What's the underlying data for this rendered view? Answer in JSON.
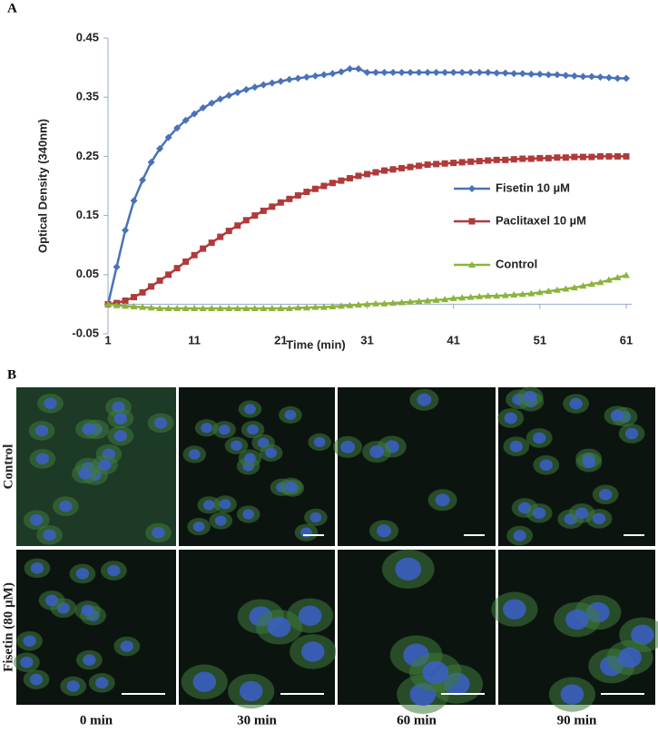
{
  "chart_data": {
    "type": "line",
    "panel_label": "A",
    "xlabel": "Time (min)",
    "ylabel": "Optical Density (340nm)",
    "x": [
      1,
      2,
      3,
      4,
      5,
      6,
      7,
      8,
      9,
      10,
      11,
      12,
      13,
      14,
      15,
      16,
      17,
      18,
      19,
      20,
      21,
      22,
      23,
      24,
      25,
      26,
      27,
      28,
      29,
      30,
      31,
      32,
      33,
      34,
      35,
      36,
      37,
      38,
      39,
      40,
      41,
      42,
      43,
      44,
      45,
      46,
      47,
      48,
      49,
      50,
      51,
      52,
      53,
      54,
      55,
      56,
      57,
      58,
      59,
      60,
      61
    ],
    "xlim": [
      1,
      61
    ],
    "xticks": [
      1,
      11,
      21,
      31,
      41,
      51,
      61
    ],
    "ylim": [
      -0.05,
      0.45
    ],
    "yticks": [
      -0.05,
      0.05,
      0.15,
      0.25,
      0.35,
      0.45
    ],
    "legend_position": "right",
    "series": [
      {
        "name": "Fisetin  10 µM",
        "color": "#4a72b8",
        "marker": "diamond",
        "values": [
          0,
          0.063,
          0.125,
          0.175,
          0.21,
          0.24,
          0.263,
          0.282,
          0.298,
          0.311,
          0.322,
          0.332,
          0.34,
          0.347,
          0.353,
          0.358,
          0.363,
          0.367,
          0.371,
          0.374,
          0.377,
          0.38,
          0.382,
          0.384,
          0.386,
          0.388,
          0.39,
          0.393,
          0.398,
          0.398,
          0.392,
          0.392,
          0.392,
          0.392,
          0.392,
          0.392,
          0.392,
          0.392,
          0.392,
          0.392,
          0.392,
          0.392,
          0.392,
          0.392,
          0.392,
          0.391,
          0.391,
          0.39,
          0.39,
          0.389,
          0.389,
          0.388,
          0.388,
          0.387,
          0.386,
          0.385,
          0.385,
          0.384,
          0.383,
          0.382,
          0.382
        ]
      },
      {
        "name": "Paclitaxel 10 µM",
        "color": "#b03a3a",
        "marker": "square",
        "values": [
          0,
          0.002,
          0.006,
          0.012,
          0.02,
          0.03,
          0.04,
          0.05,
          0.061,
          0.072,
          0.083,
          0.094,
          0.104,
          0.114,
          0.124,
          0.133,
          0.142,
          0.15,
          0.158,
          0.165,
          0.172,
          0.178,
          0.184,
          0.19,
          0.195,
          0.2,
          0.205,
          0.209,
          0.213,
          0.217,
          0.22,
          0.223,
          0.226,
          0.228,
          0.23,
          0.232,
          0.234,
          0.236,
          0.237,
          0.238,
          0.239,
          0.24,
          0.241,
          0.242,
          0.243,
          0.244,
          0.244,
          0.245,
          0.246,
          0.246,
          0.247,
          0.247,
          0.248,
          0.248,
          0.249,
          0.249,
          0.249,
          0.25,
          0.25,
          0.25,
          0.25
        ]
      },
      {
        "name": "Control",
        "color": "#8cb43c",
        "marker": "triangle",
        "values": [
          0,
          -0.002,
          -0.003,
          -0.004,
          -0.005,
          -0.006,
          -0.007,
          -0.007,
          -0.007,
          -0.007,
          -0.007,
          -0.007,
          -0.007,
          -0.007,
          -0.007,
          -0.007,
          -0.007,
          -0.007,
          -0.007,
          -0.007,
          -0.007,
          -0.007,
          -0.006,
          -0.006,
          -0.005,
          -0.005,
          -0.004,
          -0.003,
          -0.002,
          -0.001,
          0,
          0.001,
          0.001,
          0.002,
          0.003,
          0.004,
          0.005,
          0.006,
          0.007,
          0.008,
          0.01,
          0.011,
          0.012,
          0.013,
          0.014,
          0.014,
          0.015,
          0.016,
          0.017,
          0.018,
          0.02,
          0.022,
          0.024,
          0.026,
          0.028,
          0.031,
          0.034,
          0.037,
          0.041,
          0.045,
          0.049
        ]
      }
    ]
  },
  "panel_b": {
    "panel_label": "B",
    "rows": [
      "Control",
      "Fisetin (80 µM)"
    ],
    "columns": [
      "0 min",
      "30 min",
      "60 min",
      "90 min"
    ]
  }
}
